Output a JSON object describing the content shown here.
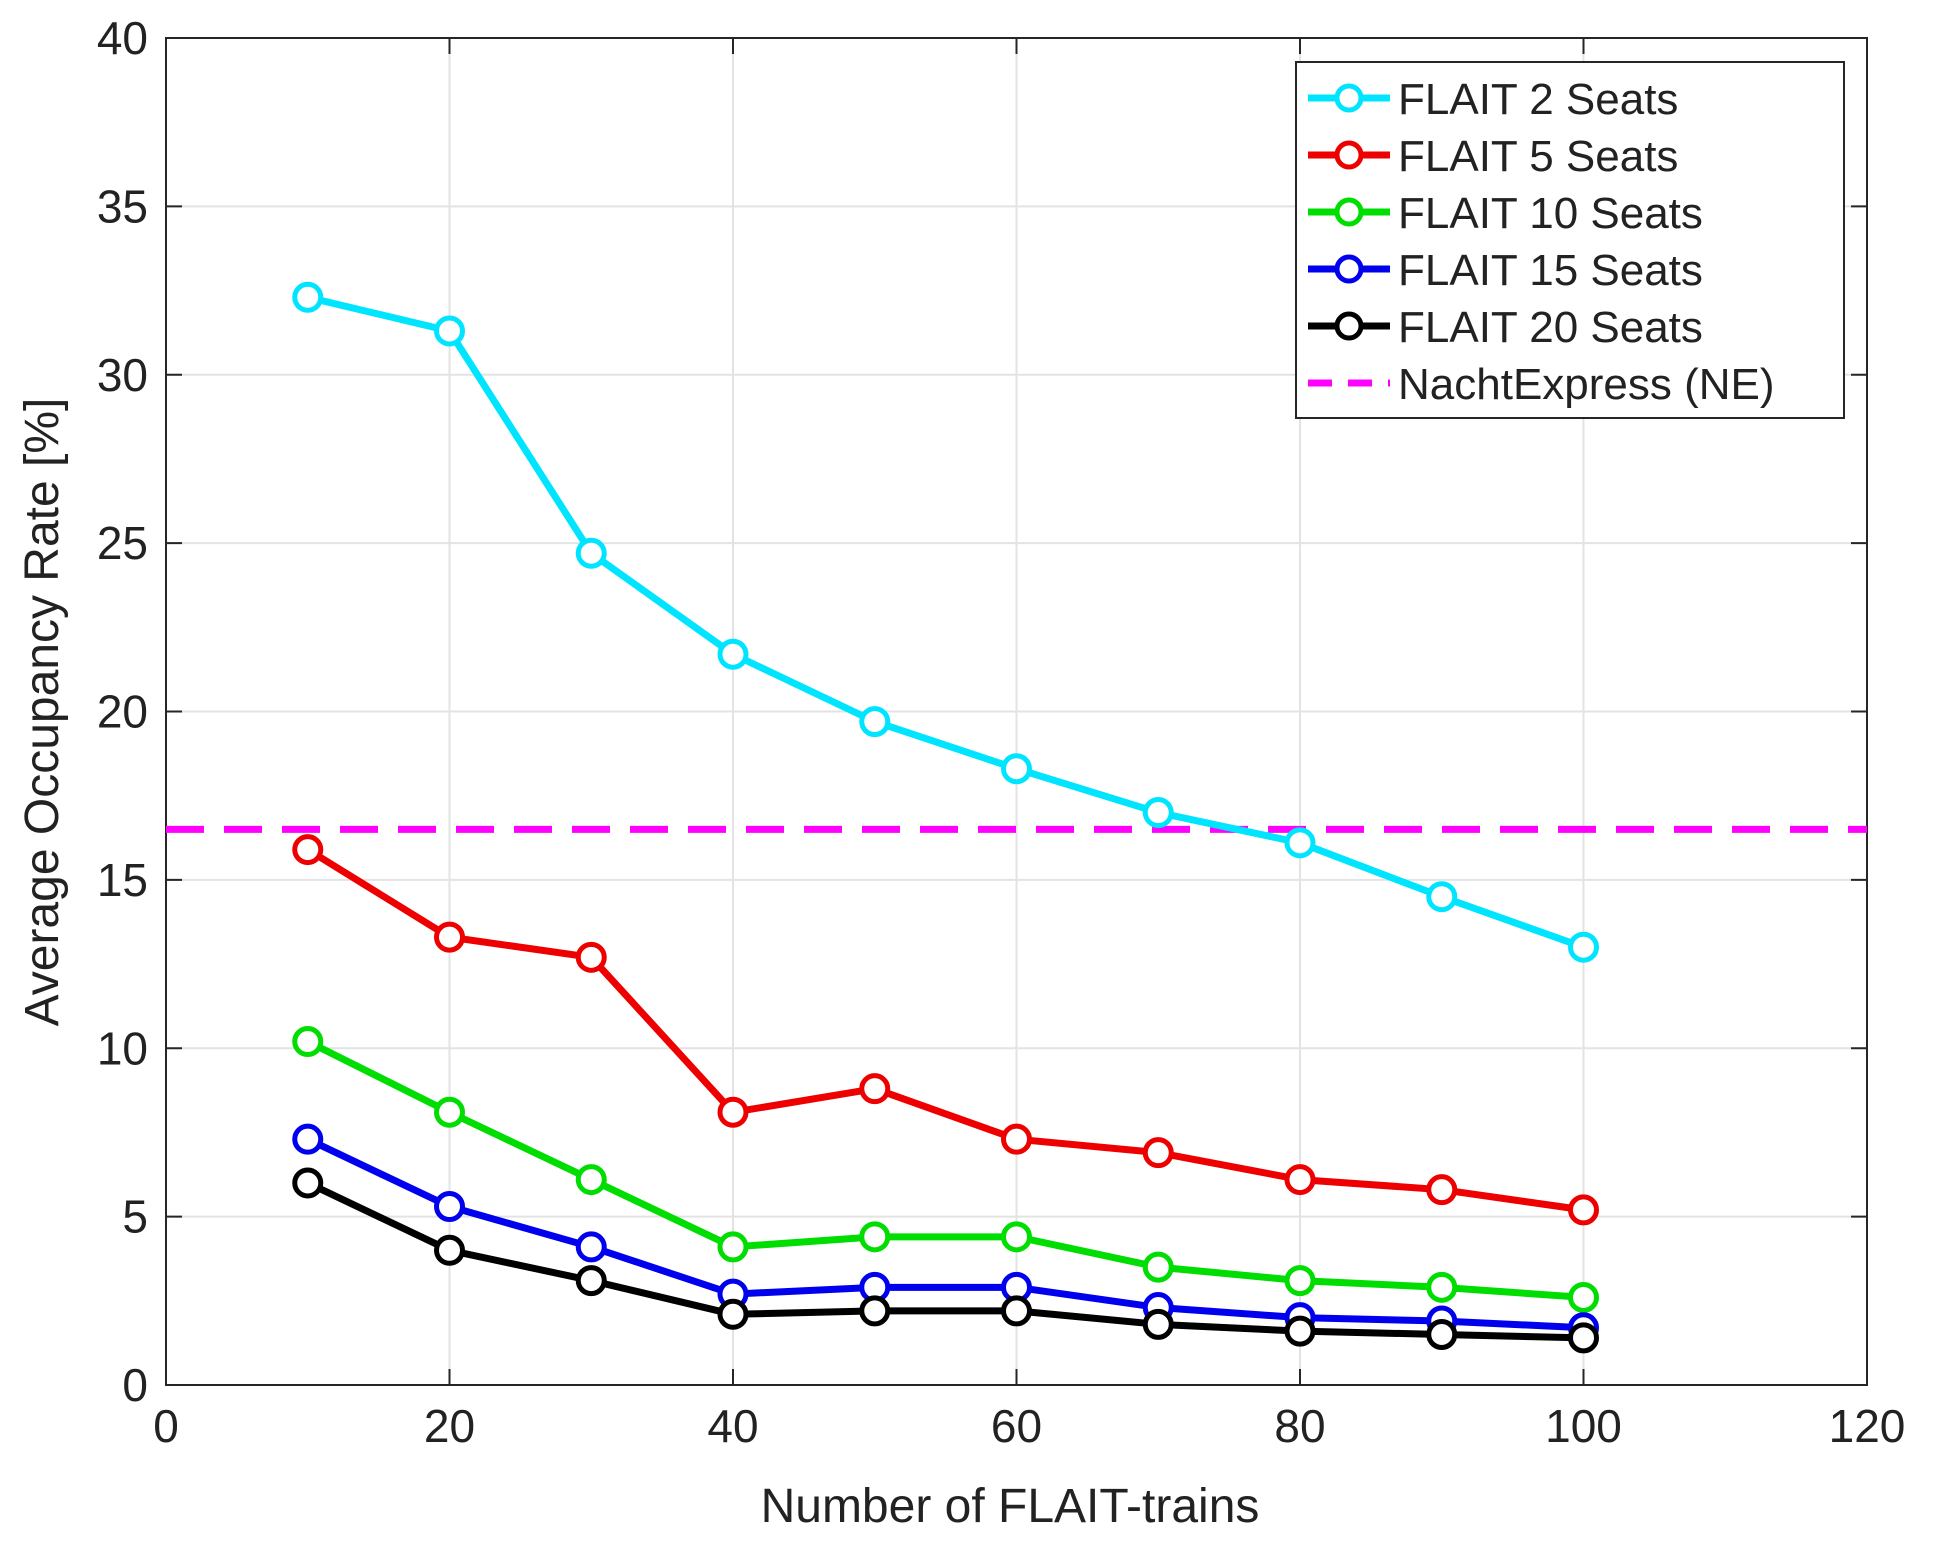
{
  "chart_data": {
    "type": "line",
    "title": "",
    "xlabel": "Number of FLAIT-trains",
    "ylabel": "Average Occupancy Rate [%]",
    "xlim": [
      0,
      120
    ],
    "ylim": [
      0,
      40
    ],
    "xticks": [
      0,
      20,
      40,
      60,
      80,
      100,
      120
    ],
    "yticks": [
      0,
      5,
      10,
      15,
      20,
      25,
      30,
      35,
      40
    ],
    "grid": true,
    "legend_position": "top-right",
    "x": [
      10,
      20,
      30,
      40,
      50,
      60,
      70,
      80,
      90,
      100
    ],
    "series": [
      {
        "name": "FLAIT 2 Seats",
        "color": "#00e5ff",
        "style": "solid-circle",
        "values": [
          32.3,
          31.3,
          24.7,
          21.7,
          19.7,
          18.3,
          17.0,
          16.1,
          14.5,
          13.0
        ]
      },
      {
        "name": "FLAIT 5 Seats",
        "color": "#ee0000",
        "style": "solid-circle",
        "values": [
          15.9,
          13.3,
          12.7,
          8.1,
          8.8,
          7.3,
          6.9,
          6.1,
          5.8,
          5.2
        ]
      },
      {
        "name": "FLAIT 10 Seats",
        "color": "#00dd00",
        "style": "solid-circle",
        "values": [
          10.2,
          8.1,
          6.1,
          4.1,
          4.4,
          4.4,
          3.5,
          3.1,
          2.9,
          2.6
        ]
      },
      {
        "name": "FLAIT 15 Seats",
        "color": "#0000ee",
        "style": "solid-circle",
        "values": [
          7.3,
          5.3,
          4.1,
          2.7,
          2.9,
          2.9,
          2.3,
          2.0,
          1.9,
          1.7
        ]
      },
      {
        "name": "FLAIT 20 Seats",
        "color": "#000000",
        "style": "solid-circle",
        "values": [
          6.0,
          4.0,
          3.1,
          2.1,
          2.2,
          2.2,
          1.8,
          1.6,
          1.5,
          1.4
        ]
      }
    ],
    "reference_line": {
      "name": "NachtExpress (NE)",
      "color": "#ff00ff",
      "style": "dashed",
      "y": 16.5
    }
  }
}
